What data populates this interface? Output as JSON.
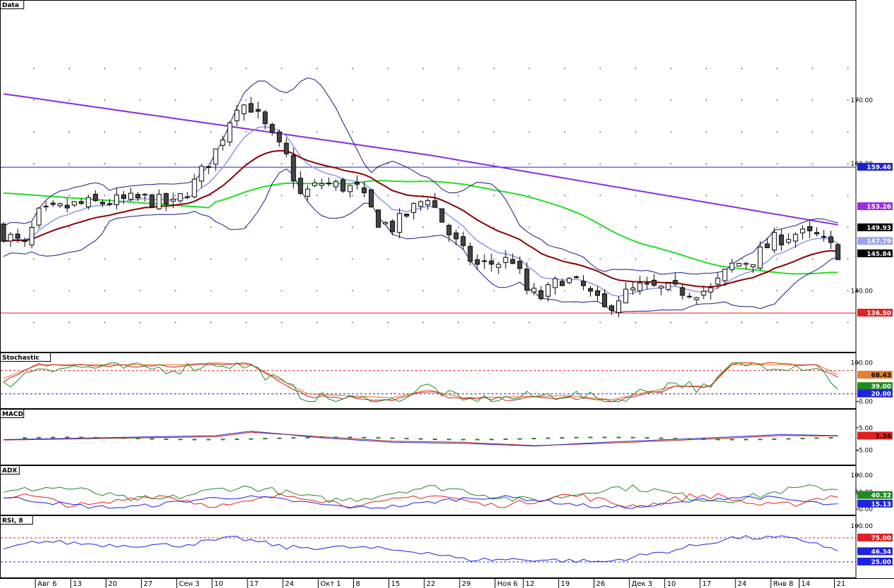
{
  "chart_data": [
    {
      "title": "Data",
      "type": "candlestick",
      "ylim": [
        130.5,
        184
      ],
      "yticks": [
        {
          "v": 170,
          "label": "170.00"
        },
        {
          "v": 160,
          "label": "160.00"
        },
        {
          "v": 140,
          "label": "140.00"
        }
      ],
      "hlines": [
        {
          "value": 159.46,
          "color": "#1f1fd1",
          "label": "159.46",
          "tag_bg": "#1f1fd1",
          "tag_fg": "#ffffff"
        },
        {
          "value": 136.5,
          "color": "#e02020",
          "label": "136.50",
          "tag_bg": "#e02020",
          "tag_fg": "#ffffff"
        }
      ],
      "value_tags": [
        {
          "value": 153.26,
          "label": "153.26",
          "bg": "#9a2be0",
          "fg": "#ffffff"
        },
        {
          "value": 149.93,
          "label": "149.93",
          "bg": "#000000",
          "fg": "#ffffff"
        },
        {
          "value": 147.79,
          "label": "147.79",
          "bg": "#9aa2f0",
          "fg": "#ffffff"
        },
        {
          "value": 145.84,
          "label": "145.84",
          "bg": "#000000",
          "fg": "#ffffff"
        }
      ],
      "ma_colors": {
        "ma_fast": "#8c96ee",
        "ma_mid": "#8b0000",
        "ma_slow": "#22dd22",
        "ma_long": "#8a2be2",
        "bands": "#1a1a80"
      }
    },
    {
      "title": "Stochastic",
      "type": "line",
      "ylim": [
        -8,
        112
      ],
      "yticks": [
        {
          "v": 100,
          "label": "100.00"
        },
        {
          "v": 0,
          "label": "0.00"
        }
      ],
      "hlines": [
        {
          "value": 80,
          "color": "#e02020"
        },
        {
          "value": 20,
          "color": "#2020e0"
        }
      ],
      "value_tags": [
        {
          "value": 68.43,
          "label": "68.43",
          "bg": "#e08030",
          "fg": "#000"
        },
        {
          "value": 39,
          "label": "39.00",
          "bg": "#228822",
          "fg": "#fff"
        },
        {
          "value": 20,
          "label": "20.00",
          "bg": "#2020e0",
          "fg": "#fff"
        }
      ]
    },
    {
      "title": "MACD",
      "type": "line",
      "ylim": [
        -10,
        11
      ],
      "yticks": [
        {
          "v": 5,
          "label": "5.00"
        },
        {
          "v": -5,
          "label": "-5.00"
        }
      ],
      "value_tags": [
        {
          "value": 1.34,
          "label": "1.34",
          "bg": "#e02020",
          "fg": "#000"
        }
      ]
    },
    {
      "title": "ADX",
      "type": "line",
      "ylim": [
        -6,
        112
      ],
      "yticks": [
        {
          "v": 100,
          "label": "100.00"
        },
        {
          "v": 50,
          "label": "50.00"
        },
        {
          "v": 0,
          "label": "0.00"
        }
      ],
      "value_tags": [
        {
          "value": 40.32,
          "label": "40.32",
          "bg": "#228822",
          "fg": "#fff"
        },
        {
          "value": 15.13,
          "label": "15.13",
          "bg": "#2020e0",
          "fg": "#fff"
        }
      ]
    },
    {
      "title": "RSI, 8",
      "type": "line",
      "ylim": [
        0,
        110
      ],
      "yticks": [
        {
          "v": 100,
          "label": "100.00"
        }
      ],
      "hlines": [
        {
          "value": 75,
          "color": "#e02020"
        },
        {
          "value": 25,
          "color": "#2020e0"
        }
      ],
      "value_tags": [
        {
          "value": 75,
          "label": "75.00",
          "bg": "#e02020",
          "fg": "#fff"
        },
        {
          "value": 46.34,
          "label": "46.34",
          "bg": "#2020e0",
          "fg": "#fff"
        },
        {
          "value": 25,
          "label": "25.00",
          "bg": "#2020e0",
          "fg": "#fff"
        }
      ]
    }
  ],
  "x_axis": {
    "labels": [
      {
        "i": 5,
        "label": "Авг 6"
      },
      {
        "i": 10,
        "label": "13"
      },
      {
        "i": 15,
        "label": "20"
      },
      {
        "i": 20,
        "label": "27"
      },
      {
        "i": 25,
        "label": "Сен 3"
      },
      {
        "i": 30,
        "label": "10"
      },
      {
        "i": 35,
        "label": "17"
      },
      {
        "i": 40,
        "label": "24"
      },
      {
        "i": 45,
        "label": "Окт 1"
      },
      {
        "i": 50,
        "label": "8"
      },
      {
        "i": 55,
        "label": "15"
      },
      {
        "i": 60,
        "label": "22"
      },
      {
        "i": 65,
        "label": "29"
      },
      {
        "i": 70,
        "label": "Ноя 6"
      },
      {
        "i": 74,
        "label": "12"
      },
      {
        "i": 79,
        "label": "19"
      },
      {
        "i": 84,
        "label": "26"
      },
      {
        "i": 89,
        "label": "Дек 3"
      },
      {
        "i": 94,
        "label": "10"
      },
      {
        "i": 99,
        "label": "17"
      },
      {
        "i": 104,
        "label": "24"
      },
      {
        "i": 109,
        "label": "Янв 8"
      },
      {
        "i": 113,
        "label": "14"
      },
      {
        "i": 118,
        "label": "21"
      }
    ]
  }
}
